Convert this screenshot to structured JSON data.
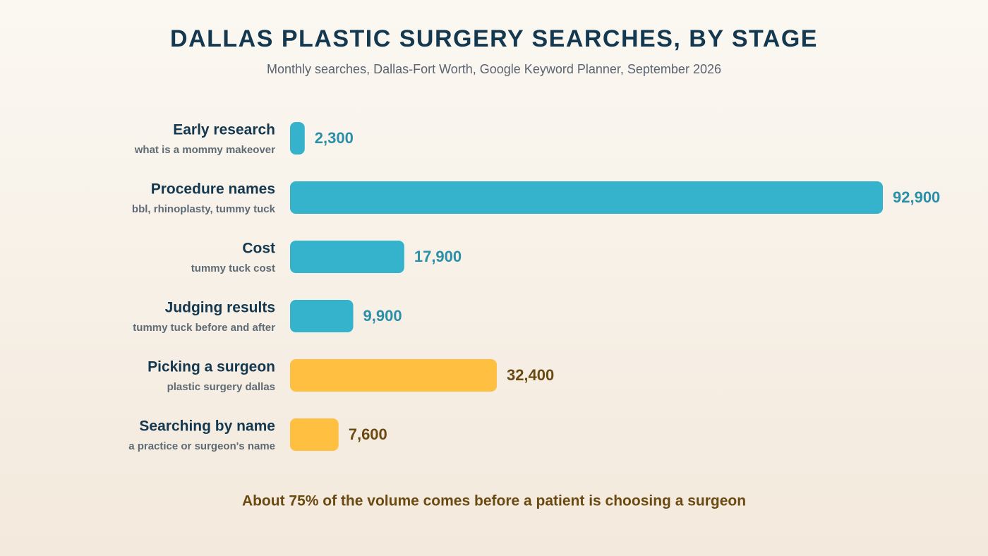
{
  "chart_data": {
    "type": "bar",
    "orientation": "horizontal",
    "title": "DALLAS PLASTIC SURGERY SEARCHES, BY STAGE",
    "subtitle": "Monthly searches, Dallas-Fort Worth, Google Keyword Planner, September 2026",
    "categories": [
      "Early research",
      "Procedure names",
      "Cost",
      "Judging results",
      "Picking a surgeon",
      "Searching by name"
    ],
    "sublabels": [
      "what is a mommy makeover",
      "bbl, rhinoplasty, tummy tuck",
      "tummy tuck cost",
      "tummy tuck before and after",
      "plastic surgery dallas",
      "a practice or surgeon's name"
    ],
    "values": [
      2300,
      92900,
      17900,
      9900,
      32400,
      7600
    ],
    "value_labels": [
      "2,300",
      "92,900",
      "17,900",
      "9,900",
      "32,400",
      "7,600"
    ],
    "colors": [
      "#35b3cd",
      "#35b3cd",
      "#35b3cd",
      "#35b3cd",
      "#ffbf40",
      "#ffbf40"
    ],
    "label_colors": [
      "#2a8fa8",
      "#2a8fa8",
      "#2a8fa8",
      "#2a8fa8",
      "#6b4a12",
      "#6b4a12"
    ],
    "annotation": "About 75% of the volume comes before a patient is choosing a surgeon"
  }
}
